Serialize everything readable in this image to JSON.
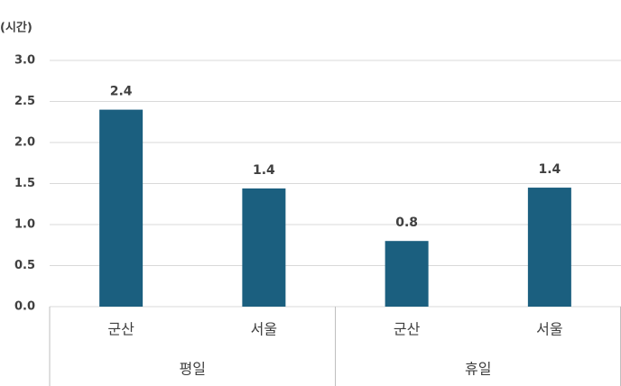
{
  "chart_data": {
    "type": "bar",
    "y_label": "(시간)",
    "groups": [
      {
        "name": "평일",
        "categories": [
          "군산",
          "서울"
        ]
      },
      {
        "name": "휴일",
        "categories": [
          "군산",
          "서울"
        ]
      }
    ],
    "values": [
      2.4,
      1.44,
      0.8,
      1.45
    ],
    "value_labels": [
      "2.4",
      "1.4",
      "0.8",
      "1.4"
    ],
    "color": "#1b5f7f",
    "ylim": [
      0,
      3
    ],
    "yticks": [
      {
        "value": 0,
        "label": "0.0"
      },
      {
        "value": 0.5,
        "label": "0.5"
      },
      {
        "value": 1,
        "label": "1.0"
      },
      {
        "value": 1.5,
        "label": "1.5"
      },
      {
        "value": 2,
        "label": "2.0"
      },
      {
        "value": 2.5,
        "label": "2.5"
      },
      {
        "value": 3,
        "label": "3.0"
      }
    ],
    "grid": true
  }
}
